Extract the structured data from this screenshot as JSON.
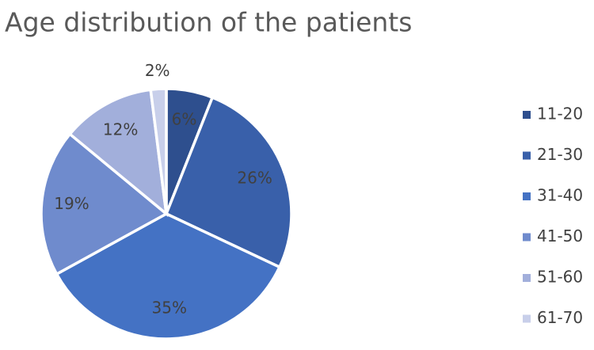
{
  "chart_data": {
    "type": "pie",
    "title": "Age distribution of the patients",
    "categories": [
      "11-20",
      "21-30",
      "31-40",
      "41-50",
      "51-60",
      "61-70"
    ],
    "values": [
      6,
      26,
      35,
      19,
      12,
      2
    ],
    "value_labels": [
      "6%",
      "26%",
      "35%",
      "19%",
      "12%",
      "2%"
    ],
    "colors": [
      "#2e4f8e",
      "#3960aa",
      "#4472c4",
      "#6f8bcd",
      "#a2afdb",
      "#c8cfea"
    ],
    "legend": "right"
  }
}
